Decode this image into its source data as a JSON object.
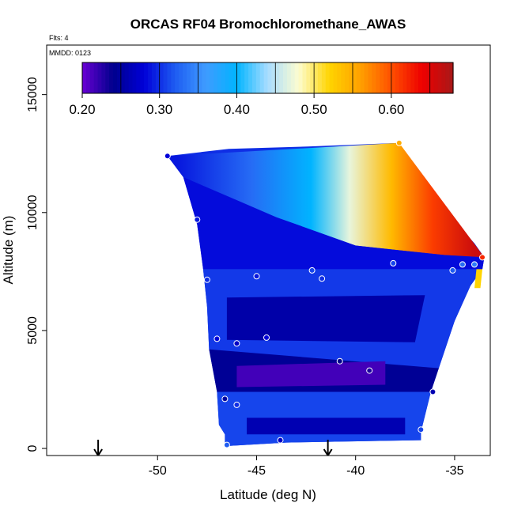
{
  "chart_data": {
    "type": "heatmap",
    "title": "ORCAS RF04 Bromochloromethane_AWAS",
    "annotations": {
      "flights": "Flts: 4",
      "date": "MMDD: 0123"
    },
    "xlabel": "Latitude (deg N)",
    "ylabel": "Altitude (m)",
    "xlim": [
      -55.6,
      -33.2
    ],
    "ylim": [
      -300,
      17100
    ],
    "x_ticks": [
      -50,
      -45,
      -40,
      -35
    ],
    "x_tick_labels": [
      "-50",
      "-45",
      "-40",
      "-35"
    ],
    "y_ticks": [
      0,
      5000,
      10000,
      15000
    ],
    "y_tick_labels": [
      "0",
      "5000",
      "10000",
      "15000"
    ],
    "colorbar": {
      "range": [
        0.2,
        0.68
      ],
      "ticks": [
        0.2,
        0.3,
        0.4,
        0.5,
        0.6
      ],
      "tick_labels": [
        "0.20",
        "0.30",
        "0.40",
        "0.50",
        "0.60"
      ],
      "colors": [
        "#6a00d4",
        "#00008c",
        "#0000d8",
        "#1e5cf2",
        "#3f9cff",
        "#00b4ff",
        "#a8dcff",
        "#fdfdd0",
        "#ffd400",
        "#ffa000",
        "#ff5000",
        "#ee0000",
        "#a81818"
      ]
    },
    "arrows_at_latitude": [
      -53.0,
      -41.4
    ],
    "profile_envelope": [
      [
        -49.5,
        12400
      ],
      [
        -46.4,
        12700
      ],
      [
        -42.4,
        12800
      ],
      [
        -37.8,
        12950
      ],
      [
        -37.0,
        11500
      ],
      [
        -34.0,
        8700
      ],
      [
        -33.5,
        8100
      ],
      [
        -33.6,
        7600
      ],
      [
        -34.2,
        6900
      ],
      [
        -35.0,
        5400
      ],
      [
        -35.8,
        3400
      ],
      [
        -36.2,
        2400
      ],
      [
        -36.7,
        700
      ],
      [
        -36.7,
        350
      ],
      [
        -43.5,
        250
      ],
      [
        -46.6,
        100
      ],
      [
        -46.6,
        600
      ],
      [
        -46.9,
        1000
      ],
      [
        -47.0,
        2400
      ],
      [
        -47.4,
        4200
      ],
      [
        -47.5,
        6000
      ],
      [
        -47.7,
        7600
      ],
      [
        -48.0,
        9500
      ],
      [
        -48.7,
        11500
      ],
      [
        -49.5,
        12400
      ]
    ],
    "regions": [
      {
        "name": "upper-gradient",
        "polygon": [
          [
            -49.5,
            12400
          ],
          [
            -37.8,
            12950
          ],
          [
            -33.5,
            8100
          ],
          [
            -35.5,
            8200
          ],
          [
            -40.0,
            8600
          ],
          [
            -44.0,
            9800
          ],
          [
            -48.7,
            11500
          ]
        ],
        "gradient": {
          "from": [
            -49.0,
            10500
          ],
          "to": [
            -34.0,
            10500
          ],
          "stops": [
            [
              0.0,
              0.29
            ],
            [
              0.25,
              0.33
            ],
            [
              0.45,
              0.4
            ],
            [
              0.58,
              0.47
            ],
            [
              0.72,
              0.54
            ],
            [
              0.86,
              0.61
            ],
            [
              1.0,
              0.66
            ]
          ]
        }
      },
      {
        "name": "mid-upper",
        "polygon": [
          [
            -48.7,
            11500
          ],
          [
            -44.0,
            9800
          ],
          [
            -40.0,
            8600
          ],
          [
            -35.5,
            8200
          ],
          [
            -33.5,
            8100
          ],
          [
            -33.6,
            7600
          ],
          [
            -47.7,
            7600
          ],
          [
            -48.0,
            9500
          ]
        ],
        "value": 0.285
      },
      {
        "name": "mid-layer",
        "polygon": [
          [
            -47.7,
            7600
          ],
          [
            -33.6,
            7600
          ],
          [
            -34.2,
            6900
          ],
          [
            -35.0,
            5400
          ],
          [
            -35.8,
            3400
          ],
          [
            -47.4,
            4200
          ],
          [
            -47.5,
            6000
          ]
        ],
        "value": 0.305
      },
      {
        "name": "mid-core",
        "polygon": [
          [
            -46.5,
            6400
          ],
          [
            -36.5,
            6500
          ],
          [
            -37.0,
            4500
          ],
          [
            -46.5,
            4600
          ]
        ],
        "value": 0.255
      },
      {
        "name": "low-layer",
        "polygon": [
          [
            -47.4,
            4200
          ],
          [
            -35.8,
            3400
          ],
          [
            -36.2,
            2400
          ],
          [
            -47.0,
            2400
          ]
        ],
        "value": 0.245
      },
      {
        "name": "low-core",
        "polygon": [
          [
            -46.0,
            3500
          ],
          [
            -38.5,
            3700
          ],
          [
            -38.5,
            2700
          ],
          [
            -46.0,
            2600
          ]
        ],
        "value": 0.215
      },
      {
        "name": "near-surface",
        "polygon": [
          [
            -47.0,
            2400
          ],
          [
            -36.2,
            2400
          ],
          [
            -36.7,
            700
          ],
          [
            -36.7,
            350
          ],
          [
            -43.5,
            250
          ],
          [
            -46.6,
            100
          ],
          [
            -46.6,
            600
          ],
          [
            -46.9,
            1000
          ]
        ],
        "value": 0.31
      },
      {
        "name": "surface-core",
        "polygon": [
          [
            -45.5,
            1300
          ],
          [
            -37.5,
            1300
          ],
          [
            -37.5,
            600
          ],
          [
            -45.5,
            600
          ]
        ],
        "value": 0.26
      },
      {
        "name": "edge-high-points",
        "polygon": [
          [
            -33.9,
            7600
          ],
          [
            -33.6,
            7600
          ],
          [
            -33.7,
            6800
          ],
          [
            -34.0,
            6800
          ]
        ],
        "value": 0.52
      }
    ],
    "sample_points": [
      {
        "lat": -49.5,
        "alt": 12400,
        "value": 0.28
      },
      {
        "lat": -37.8,
        "alt": 12950,
        "value": 0.55
      },
      {
        "lat": -33.6,
        "alt": 8100,
        "value": 0.62
      },
      {
        "lat": -48.0,
        "alt": 9700,
        "value": 0.29
      },
      {
        "lat": -38.1,
        "alt": 7850,
        "value": 0.31
      },
      {
        "lat": -42.2,
        "alt": 7550,
        "value": 0.31
      },
      {
        "lat": -41.7,
        "alt": 7200,
        "value": 0.3
      },
      {
        "lat": -45.0,
        "alt": 7300,
        "value": 0.29
      },
      {
        "lat": -47.5,
        "alt": 7150,
        "value": 0.3
      },
      {
        "lat": -35.1,
        "alt": 7550,
        "value": 0.32
      },
      {
        "lat": -34.6,
        "alt": 7800,
        "value": 0.33
      },
      {
        "lat": -34.0,
        "alt": 7800,
        "value": 0.34
      },
      {
        "lat": -44.5,
        "alt": 4700,
        "value": 0.28
      },
      {
        "lat": -46.0,
        "alt": 4450,
        "value": 0.27
      },
      {
        "lat": -47.0,
        "alt": 4650,
        "value": 0.28
      },
      {
        "lat": -40.8,
        "alt": 3700,
        "value": 0.24
      },
      {
        "lat": -39.3,
        "alt": 3300,
        "value": 0.23
      },
      {
        "lat": -36.1,
        "alt": 2400,
        "value": 0.26
      },
      {
        "lat": -46.6,
        "alt": 2100,
        "value": 0.25
      },
      {
        "lat": -46.0,
        "alt": 1850,
        "value": 0.3
      },
      {
        "lat": -36.7,
        "alt": 800,
        "value": 0.31
      },
      {
        "lat": -43.8,
        "alt": 350,
        "value": 0.27
      },
      {
        "lat": -46.5,
        "alt": 150,
        "value": 0.32
      }
    ]
  }
}
